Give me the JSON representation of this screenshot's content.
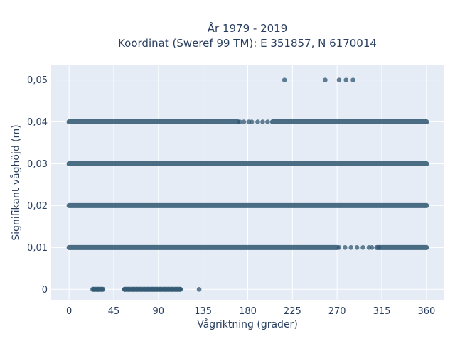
{
  "chart_data": {
    "type": "scatter",
    "title_line1": "År 1979 - 2019",
    "title_line2": "Koordinat (Sweref 99 TM): E 351857, N 6170014",
    "xlabel": "Vågriktning (grader)",
    "ylabel": "Signifikant våghöjd (m)",
    "xlim": [
      -18,
      378
    ],
    "ylim": [
      -0.0025,
      0.0535
    ],
    "x_ticks": [
      0,
      45,
      90,
      135,
      180,
      225,
      270,
      315,
      360
    ],
    "x_tick_labels": [
      "0",
      "45",
      "90",
      "135",
      "180",
      "225",
      "270",
      "315",
      "360"
    ],
    "y_ticks": [
      0,
      0.01,
      0.02,
      0.03,
      0.04,
      0.05
    ],
    "y_tick_labels": [
      "0",
      "0,01",
      "0,02",
      "0,03",
      "0,04",
      "0,05"
    ],
    "grid": true,
    "colors": {
      "marker": "#2f5670",
      "plot_bg": "#e5ecf6",
      "grid": "#ffffff",
      "text": "#2a3f5f"
    },
    "bands": [
      {
        "y": 0.0,
        "ranges": [
          [
            24,
            34
          ],
          [
            56,
            112
          ]
        ],
        "points": [
          25,
          29,
          33,
          56,
          60,
          64,
          68,
          72,
          76,
          80,
          84,
          88,
          92,
          96,
          100,
          104,
          108,
          112,
          131
        ]
      },
      {
        "y": 0.01,
        "ranges": [
          [
            0,
            270
          ],
          [
            310,
            360
          ]
        ],
        "points": [
          272,
          278,
          284,
          290,
          296,
          302,
          305,
          312
        ]
      },
      {
        "y": 0.02,
        "ranges": [
          [
            0,
            360
          ]
        ],
        "points": []
      },
      {
        "y": 0.03,
        "ranges": [
          [
            0,
            360
          ]
        ],
        "points": []
      },
      {
        "y": 0.04,
        "ranges": [
          [
            0,
            170
          ],
          [
            205,
            360
          ]
        ],
        "points": [
          172,
          176,
          181,
          184,
          190,
          195,
          200
        ]
      },
      {
        "y": 0.05,
        "ranges": [],
        "points": [
          217,
          258,
          272,
          279,
          286
        ]
      }
    ]
  }
}
